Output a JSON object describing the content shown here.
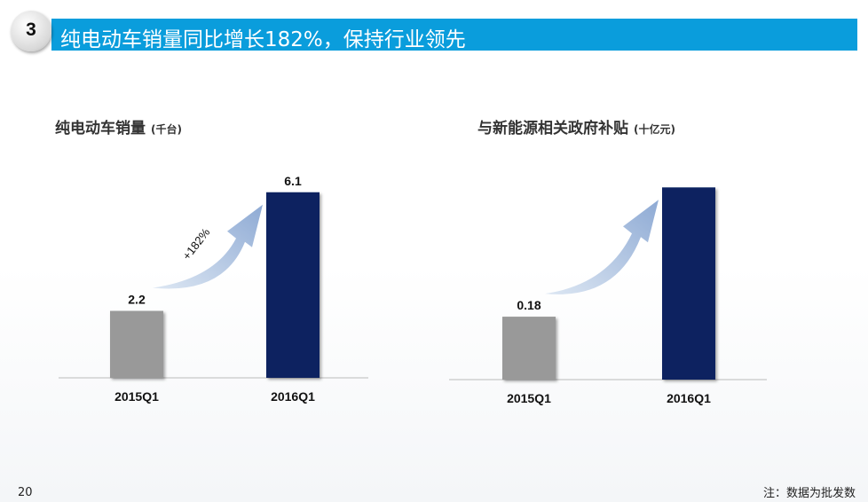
{
  "header": {
    "section_number": "3",
    "title": "纯电动车销量同比增长182%，保持行业领先"
  },
  "footer": {
    "page_number": "20",
    "note": "注：数据为批发数"
  },
  "colors": {
    "banner": "#0a9ddc",
    "bar_2015": "#999999",
    "bar_2016": "#0c2360",
    "arrow": "#9bb6da"
  },
  "chart_data": [
    {
      "type": "bar",
      "title": "纯电动车销量",
      "unit": "(千台)",
      "categories": [
        "2015Q1",
        "2016Q1"
      ],
      "values": [
        2.2,
        6.1
      ],
      "data_labels": [
        "2.2",
        "6.1"
      ],
      "annotation": "+182%"
    },
    {
      "type": "bar",
      "title": "与新能源相关政府补贴",
      "unit": "(十亿元)",
      "categories": [
        "2015Q1",
        "2016Q1"
      ],
      "values": [
        0.18,
        0.55
      ],
      "data_labels": [
        "0.18",
        ""
      ]
    }
  ]
}
